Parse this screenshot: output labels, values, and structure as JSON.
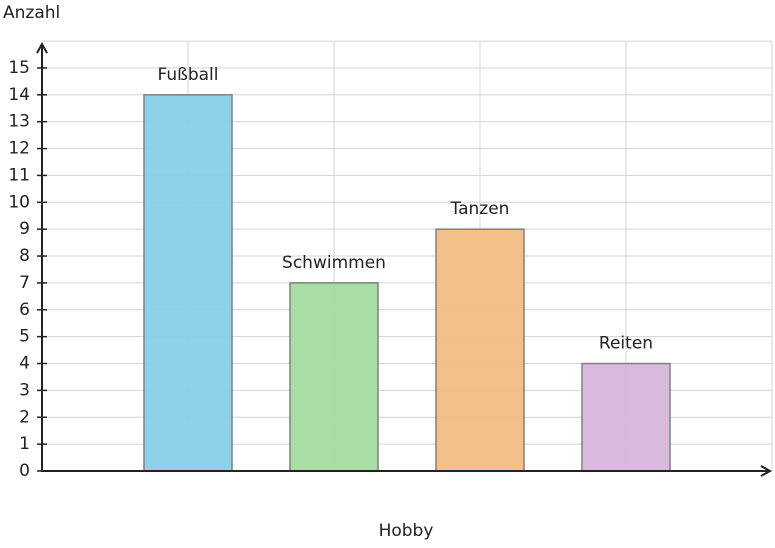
{
  "chart_data": {
    "type": "bar",
    "x_label": "Hobby",
    "y_label": "Anzahl",
    "categories": [
      "Fußball",
      "Schwimmen",
      "Tanzen",
      "Reiten"
    ],
    "values": [
      14,
      7,
      9,
      4
    ],
    "colors": [
      "#87d0e8",
      "#a4dba1",
      "#f3bd83",
      "#d8b5dc"
    ],
    "ylim": [
      0,
      16
    ],
    "yticks": [
      0,
      1,
      2,
      3,
      4,
      5,
      6,
      7,
      8,
      9,
      10,
      11,
      12,
      13,
      14,
      15
    ],
    "grid": true
  }
}
